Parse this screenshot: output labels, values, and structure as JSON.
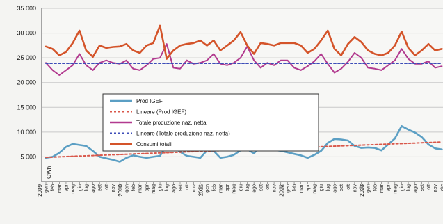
{
  "chart_data": {
    "type": "line",
    "ylabel": "GWh",
    "ylim": [
      0,
      35000
    ],
    "grid": true,
    "legend_position": "center-left",
    "y_ticks": [
      "35 000",
      "30 000",
      "25 000",
      "20 000",
      "15 000",
      "10 000",
      "5 000"
    ],
    "y_tick_values": [
      35000,
      30000,
      25000,
      20000,
      15000,
      10000,
      5000
    ],
    "x": [
      "gen",
      "feb",
      "mar",
      "apr",
      "mag",
      "giu",
      "lug",
      "ago",
      "set",
      "ott",
      "nov",
      "dic",
      "gen",
      "feb",
      "mar",
      "apr",
      "mag",
      "giu",
      "lug",
      "ago",
      "set",
      "ott",
      "nov",
      "dic",
      "gen",
      "feb",
      "mar",
      "apr",
      "mag",
      "giu",
      "lug",
      "ago",
      "set",
      "ott",
      "nov",
      "dic",
      "gen",
      "feb",
      "mar",
      "apr",
      "mag",
      "giu",
      "lug",
      "ago",
      "set",
      "ott",
      "nov",
      "dic",
      "gen",
      "feb",
      "mar",
      "apr",
      "mag",
      "giu",
      "lug",
      "ago",
      "set",
      "ott",
      "nov",
      "dic"
    ],
    "years": [
      {
        "label": "2009",
        "start_index": 0
      },
      {
        "label": "2010",
        "start_index": 12
      },
      {
        "label": "2011",
        "start_index": 24
      },
      {
        "label": "2012",
        "start_index": 36
      },
      {
        "label": "2013",
        "start_index": 48
      }
    ],
    "series": [
      {
        "name": "Prod IGEF",
        "color": "#5b9fc4",
        "style": "solid",
        "values": [
          4800,
          5000,
          5800,
          7000,
          7600,
          7400,
          7200,
          6200,
          5000,
          4700,
          4400,
          4000,
          4800,
          5300,
          5000,
          4800,
          5000,
          5200,
          7300,
          7000,
          6000,
          5200,
          5000,
          4800,
          6300,
          6200,
          4800,
          5000,
          5400,
          6300,
          6500,
          5700,
          7200,
          7400,
          6400,
          6200,
          5900,
          5600,
          5300,
          4800,
          5400,
          6200,
          7800,
          8600,
          8500,
          8300,
          7200,
          6800,
          6900,
          6800,
          6300,
          7500,
          8700,
          11200,
          10500,
          9900,
          9000,
          7500,
          6700,
          6500
        ]
      },
      {
        "name": "Lineare (Prod IGEF)",
        "color": "#d9574a",
        "style": "dotted",
        "values": [
          4900,
          4950,
          5000,
          5060,
          5110,
          5160,
          5210,
          5260,
          5320,
          5370,
          5420,
          5470,
          5530,
          5580,
          5630,
          5680,
          5740,
          5790,
          5840,
          5890,
          5950,
          6000,
          6050,
          6100,
          6160,
          6210,
          6260,
          6310,
          6370,
          6420,
          6470,
          6520,
          6580,
          6630,
          6680,
          6730,
          6790,
          6840,
          6890,
          6940,
          7000,
          7050,
          7100,
          7150,
          7210,
          7260,
          7310,
          7360,
          7420,
          7470,
          7520,
          7570,
          7630,
          7680,
          7730,
          7780,
          7840,
          7890,
          7940,
          8000
        ]
      },
      {
        "name": "Totale produzione naz. netta",
        "color": "#b23a8f",
        "style": "solid",
        "values": [
          24000,
          22500,
          21500,
          22500,
          23500,
          25800,
          23500,
          22500,
          24000,
          24500,
          24000,
          23800,
          24500,
          22800,
          22500,
          23500,
          24800,
          25000,
          27800,
          23000,
          22800,
          24500,
          23800,
          24000,
          24500,
          25800,
          23800,
          23500,
          24000,
          25000,
          27300,
          24500,
          23000,
          24000,
          23500,
          24500,
          24500,
          23000,
          22500,
          23300,
          24300,
          25800,
          23800,
          22000,
          22800,
          24200,
          26000,
          25000,
          23000,
          22800,
          22500,
          23500,
          24500,
          26800,
          24800,
          23800,
          23800,
          24300,
          23000,
          23300
        ]
      },
      {
        "name": "Lineare (Totale produzione naz. netta)",
        "color": "#3d4db8",
        "style": "dotted",
        "values": [
          23900,
          23900,
          23900,
          23900,
          23900,
          23900,
          23900,
          23900,
          23900,
          23900,
          23900,
          23900,
          23900,
          23900,
          23900,
          23900,
          23900,
          23900,
          23900,
          23900,
          23900,
          23900,
          23900,
          23900,
          23900,
          23900,
          23900,
          23900,
          23900,
          23900,
          23900,
          23900,
          23900,
          23900,
          23900,
          23900,
          23900,
          23900,
          23900,
          23900,
          23900,
          23900,
          23900,
          23900,
          23900,
          23900,
          23900,
          23900,
          23900,
          23900,
          23900,
          23900,
          23900,
          23900,
          23900,
          23900,
          23900,
          23900,
          23900,
          23900
        ]
      },
      {
        "name": "Consumi totali",
        "color": "#d4542a",
        "style": "solid",
        "values": [
          27300,
          26800,
          25500,
          26200,
          28000,
          30500,
          26500,
          25200,
          27500,
          27000,
          27200,
          27300,
          27800,
          26500,
          26000,
          27500,
          28000,
          31500,
          24800,
          26500,
          27500,
          27800,
          28000,
          28500,
          27500,
          28500,
          26500,
          27500,
          28500,
          30200,
          27500,
          25800,
          28000,
          27800,
          27500,
          28000,
          28000,
          28000,
          27500,
          26000,
          26800,
          28500,
          30500,
          26800,
          25500,
          27800,
          29200,
          28200,
          26500,
          25800,
          25500,
          26000,
          27500,
          30300,
          27000,
          25500,
          26500,
          27800,
          26500,
          26800
        ]
      }
    ]
  }
}
